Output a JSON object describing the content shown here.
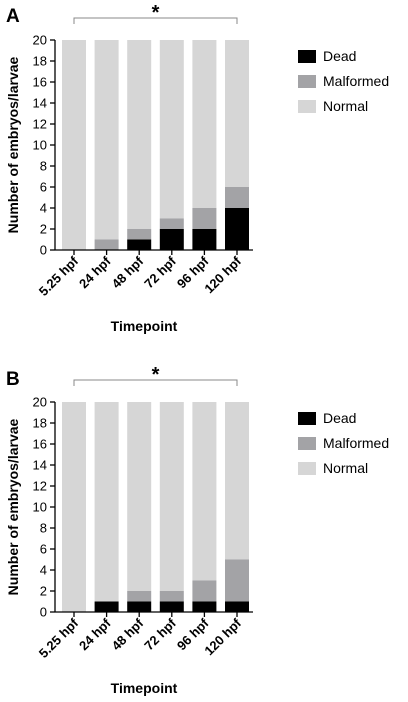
{
  "chart_data": [
    {
      "panel": "A",
      "type": "bar",
      "stacked": true,
      "categories": [
        "5.25 hpf",
        "24 hpf",
        "48 hpf",
        "72 hpf",
        "96 hpf",
        "120 hpf"
      ],
      "series": [
        {
          "name": "Dead",
          "color": "#000000",
          "values": [
            0,
            0,
            1,
            2,
            2,
            4
          ]
        },
        {
          "name": "Malformed",
          "color": "#a3a3a6",
          "values": [
            0,
            1,
            1,
            1,
            2,
            2
          ]
        },
        {
          "name": "Normal",
          "color": "#d6d6d6",
          "values": [
            20,
            19,
            18,
            17,
            16,
            14
          ]
        }
      ],
      "xlabel": "Timepoint",
      "ylabel": "Number of embryos/larvae",
      "ylim": [
        0,
        20
      ],
      "yticks": [
        0,
        2,
        4,
        6,
        8,
        10,
        12,
        14,
        16,
        18,
        20
      ],
      "significance": "*",
      "legend_position": "right",
      "grid": false
    },
    {
      "panel": "B",
      "type": "bar",
      "stacked": true,
      "categories": [
        "5.25 hpf",
        "24 hpf",
        "48 hpf",
        "72 hpf",
        "96 hpf",
        "120 hpf"
      ],
      "series": [
        {
          "name": "Dead",
          "color": "#000000",
          "values": [
            0,
            1,
            1,
            1,
            1,
            1
          ]
        },
        {
          "name": "Malformed",
          "color": "#a3a3a6",
          "values": [
            0,
            0,
            1,
            1,
            2,
            4
          ]
        },
        {
          "name": "Normal",
          "color": "#d6d6d6",
          "values": [
            20,
            19,
            18,
            18,
            17,
            15
          ]
        }
      ],
      "xlabel": "Timepoint",
      "ylabel": "Number of embryos/larvae",
      "ylim": [
        0,
        20
      ],
      "yticks": [
        0,
        2,
        4,
        6,
        8,
        10,
        12,
        14,
        16,
        18,
        20
      ],
      "significance": "*",
      "legend_position": "right",
      "grid": false
    }
  ]
}
